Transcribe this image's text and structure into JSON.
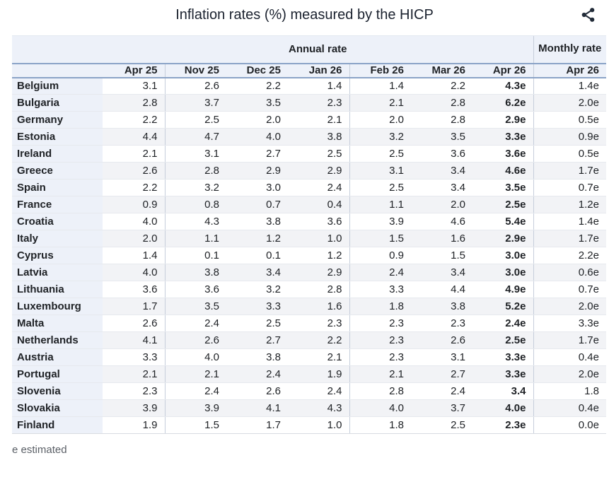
{
  "page": {
    "title": "Inflation rates (%) measured by the HICP",
    "footnote": "e estimated"
  },
  "icons": {
    "share": "share-nodes"
  },
  "colors": {
    "header_bg": "#edf1f9",
    "stripe_bg": "#f2f3f6",
    "accent_border": "#8ba3c7",
    "column_divider": "#c6cedb",
    "row_divider": "#e6e9ee",
    "text": "#202327",
    "title_text": "#1a212e",
    "footnote_text": "#5a5f66",
    "icon_color": "#222b38"
  },
  "chart_data": {
    "type": "table",
    "title": "Inflation rates (%) measured by the HICP",
    "group_headers": [
      {
        "label": "Annual rate",
        "span": 7
      },
      {
        "label": "Monthly rate",
        "span": 1
      }
    ],
    "column_headers": [
      "Apr 25",
      "Nov 25",
      "Dec 25",
      "Jan 26",
      "Feb 26",
      "Mar 26",
      "Apr 26",
      "Apr 26"
    ],
    "emphasized_column_index": 6,
    "estimated_suffix": "e",
    "rows": [
      {
        "country": "Belgium",
        "values": [
          "3.1",
          "2.6",
          "2.2",
          "1.4",
          "1.4",
          "2.2",
          "4.3e",
          "1.4e"
        ]
      },
      {
        "country": "Bulgaria",
        "values": [
          "2.8",
          "3.7",
          "3.5",
          "2.3",
          "2.1",
          "2.8",
          "6.2e",
          "2.0e"
        ]
      },
      {
        "country": "Germany",
        "values": [
          "2.2",
          "2.5",
          "2.0",
          "2.1",
          "2.0",
          "2.8",
          "2.9e",
          "0.5e"
        ]
      },
      {
        "country": "Estonia",
        "values": [
          "4.4",
          "4.7",
          "4.0",
          "3.8",
          "3.2",
          "3.5",
          "3.3e",
          "0.9e"
        ]
      },
      {
        "country": "Ireland",
        "values": [
          "2.1",
          "3.1",
          "2.7",
          "2.5",
          "2.5",
          "3.6",
          "3.6e",
          "0.5e"
        ]
      },
      {
        "country": "Greece",
        "values": [
          "2.6",
          "2.8",
          "2.9",
          "2.9",
          "3.1",
          "3.4",
          "4.6e",
          "1.7e"
        ]
      },
      {
        "country": "Spain",
        "values": [
          "2.2",
          "3.2",
          "3.0",
          "2.4",
          "2.5",
          "3.4",
          "3.5e",
          "0.7e"
        ]
      },
      {
        "country": "France",
        "values": [
          "0.9",
          "0.8",
          "0.7",
          "0.4",
          "1.1",
          "2.0",
          "2.5e",
          "1.2e"
        ]
      },
      {
        "country": "Croatia",
        "values": [
          "4.0",
          "4.3",
          "3.8",
          "3.6",
          "3.9",
          "4.6",
          "5.4e",
          "1.4e"
        ]
      },
      {
        "country": "Italy",
        "values": [
          "2.0",
          "1.1",
          "1.2",
          "1.0",
          "1.5",
          "1.6",
          "2.9e",
          "1.7e"
        ]
      },
      {
        "country": "Cyprus",
        "values": [
          "1.4",
          "0.1",
          "0.1",
          "1.2",
          "0.9",
          "1.5",
          "3.0e",
          "2.2e"
        ]
      },
      {
        "country": "Latvia",
        "values": [
          "4.0",
          "3.8",
          "3.4",
          "2.9",
          "2.4",
          "3.4",
          "3.0e",
          "0.6e"
        ]
      },
      {
        "country": "Lithuania",
        "values": [
          "3.6",
          "3.6",
          "3.2",
          "2.8",
          "3.3",
          "4.4",
          "4.9e",
          "0.7e"
        ]
      },
      {
        "country": "Luxembourg",
        "values": [
          "1.7",
          "3.5",
          "3.3",
          "1.6",
          "1.8",
          "3.8",
          "5.2e",
          "2.0e"
        ]
      },
      {
        "country": "Malta",
        "values": [
          "2.6",
          "2.4",
          "2.5",
          "2.3",
          "2.3",
          "2.3",
          "2.4e",
          "3.3e"
        ]
      },
      {
        "country": "Netherlands",
        "values": [
          "4.1",
          "2.6",
          "2.7",
          "2.2",
          "2.3",
          "2.6",
          "2.5e",
          "1.7e"
        ]
      },
      {
        "country": "Austria",
        "values": [
          "3.3",
          "4.0",
          "3.8",
          "2.1",
          "2.3",
          "3.1",
          "3.3e",
          "0.4e"
        ]
      },
      {
        "country": "Portugal",
        "values": [
          "2.1",
          "2.1",
          "2.4",
          "1.9",
          "2.1",
          "2.7",
          "3.3e",
          "2.0e"
        ]
      },
      {
        "country": "Slovenia",
        "values": [
          "2.3",
          "2.4",
          "2.6",
          "2.4",
          "2.8",
          "2.4",
          "3.4",
          "1.8"
        ]
      },
      {
        "country": "Slovakia",
        "values": [
          "3.9",
          "3.9",
          "4.1",
          "4.3",
          "4.0",
          "3.7",
          "4.0e",
          "0.4e"
        ]
      },
      {
        "country": "Finland",
        "values": [
          "1.9",
          "1.5",
          "1.7",
          "1.0",
          "1.8",
          "2.5",
          "2.3e",
          "0.0e"
        ]
      }
    ]
  }
}
